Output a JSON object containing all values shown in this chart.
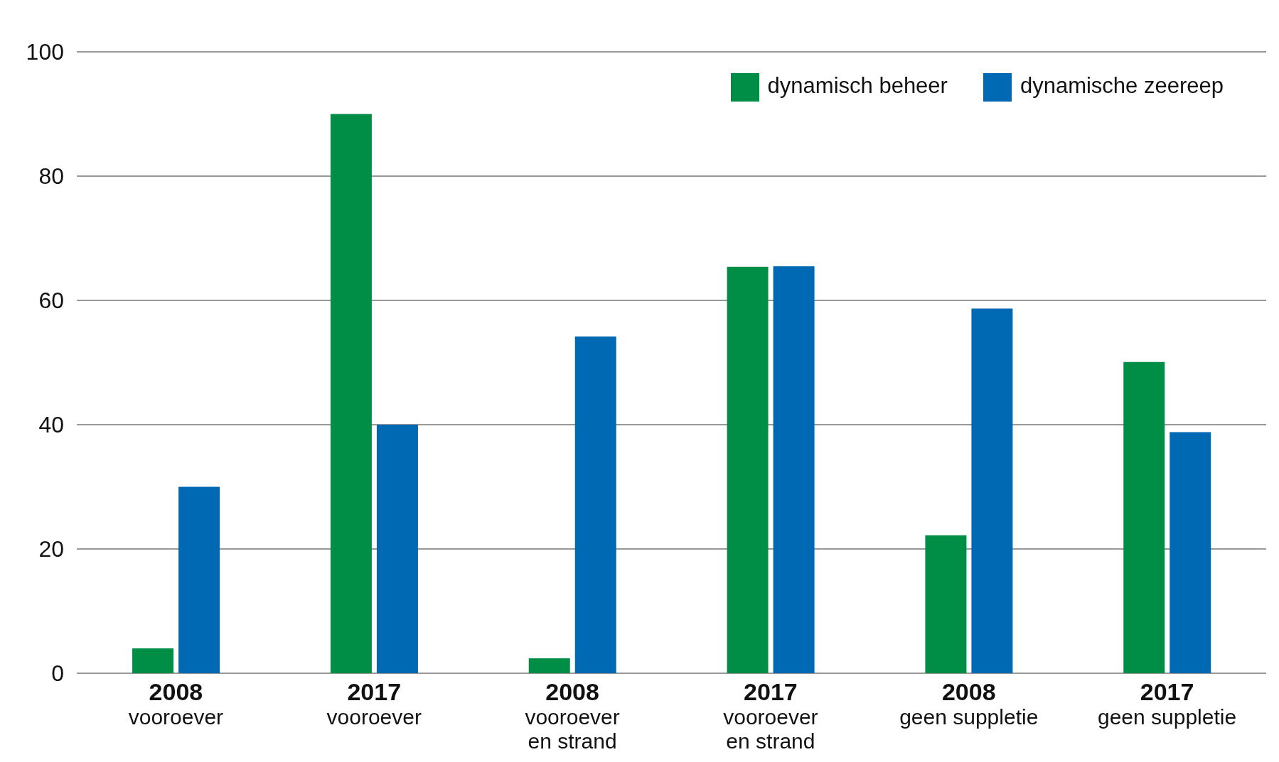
{
  "chart_data": {
    "type": "bar",
    "categories": [
      "2008\nvooroever",
      "2017\nvooroever",
      "2008\nvooroever\nen strand",
      "2017\nvooroever\nen strand",
      "2008\ngeen suppletie",
      "2017\ngeen suppletie"
    ],
    "series": [
      {
        "name": "dynamisch beheer",
        "color": "#008d46",
        "values": [
          4,
          90,
          2.4,
          65.4,
          22.2,
          50.1
        ]
      },
      {
        "name": "dynamische zeereep",
        "color": "#0069b4",
        "values": [
          30,
          40,
          54.2,
          65.5,
          58.7,
          38.8
        ]
      }
    ],
    "ylim": [
      0,
      100
    ],
    "yticks": [
      0,
      20,
      40,
      60,
      80,
      100
    ],
    "grid": "y",
    "legend": "top right"
  }
}
